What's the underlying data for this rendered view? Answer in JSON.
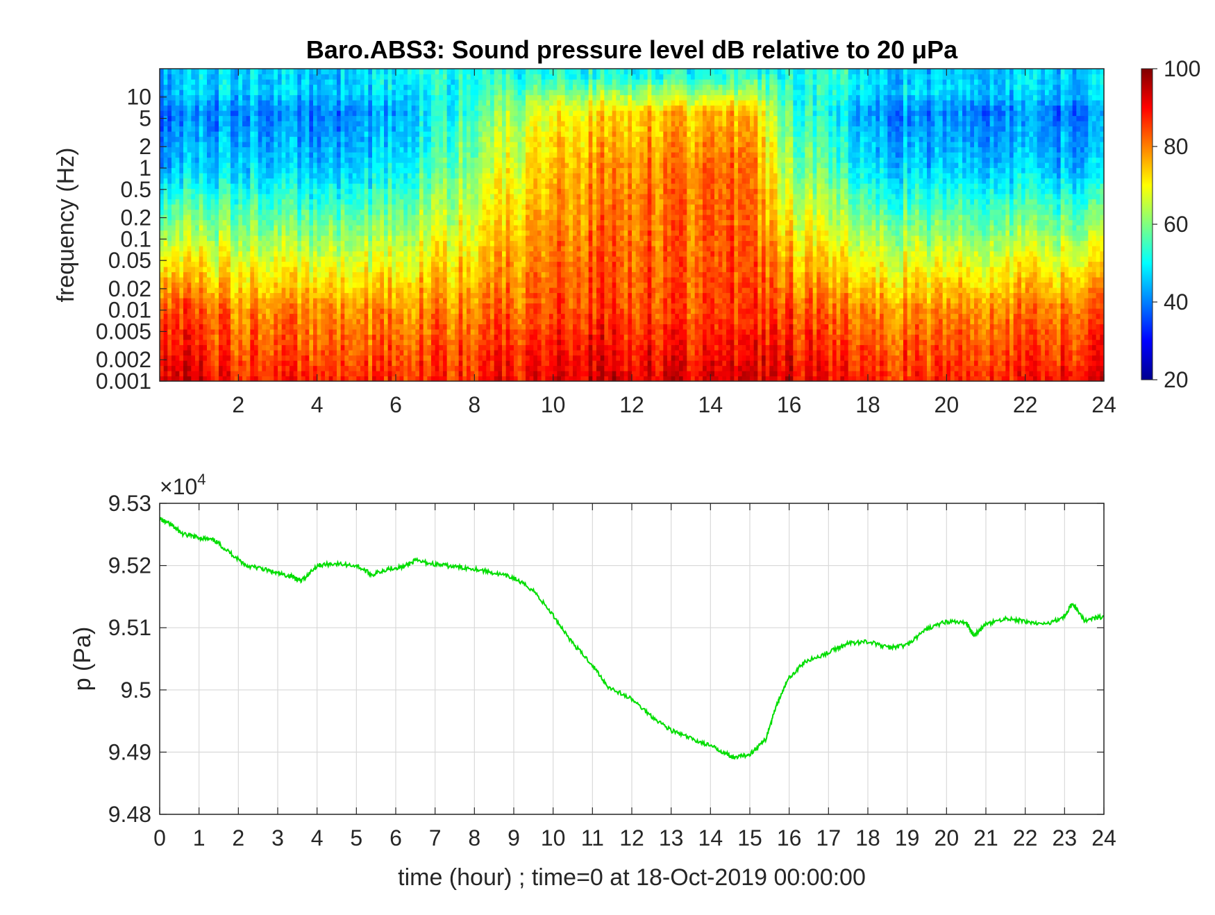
{
  "chart_data": [
    {
      "type": "heatmap",
      "title": "Baro.ABS3: Sound pressure level dB relative to 20 μPa",
      "xlabel": "",
      "ylabel": "frequency (Hz)",
      "x_range": [
        0,
        24
      ],
      "x_ticks": [
        "2",
        "4",
        "6",
        "8",
        "10",
        "12",
        "14",
        "16",
        "18",
        "20",
        "22",
        "24"
      ],
      "y_scale": "log",
      "y_range": [
        0.001,
        25
      ],
      "y_ticks": [
        "0.001",
        "0.002",
        "0.005",
        "0.01",
        "0.02",
        "0.05",
        "0.1",
        "0.2",
        "0.5",
        "1",
        "2",
        "5",
        "10"
      ],
      "colorbar": {
        "range": [
          20,
          100
        ],
        "ticks": [
          "20",
          "40",
          "60",
          "80",
          "100"
        ],
        "colormap": "jet"
      },
      "description_values": {
        "time_hour": [
          0,
          2,
          4,
          6,
          8,
          10,
          11,
          12,
          13,
          14,
          15,
          16,
          17,
          18,
          20,
          22,
          24
        ],
        "peak_level_db_at_low_freq": [
          95,
          88,
          86,
          88,
          88,
          92,
          94,
          93,
          92,
          93,
          92,
          93,
          88,
          88,
          87,
          88,
          90
        ],
        "level_db_at_1hz": [
          45,
          48,
          44,
          50,
          62,
          75,
          78,
          80,
          80,
          82,
          80,
          62,
          55,
          48,
          46,
          46,
          45
        ]
      }
    },
    {
      "type": "line",
      "title": "",
      "xlabel": "time (hour) ; time=0 at 18-Oct-2019 00:00:00",
      "ylabel": "p (Pa)",
      "exponent_label": "×10",
      "exponent_power": "4",
      "xlim": [
        0,
        24
      ],
      "ylim": [
        9.48,
        9.53
      ],
      "x_ticks": [
        "0",
        "1",
        "2",
        "3",
        "4",
        "5",
        "6",
        "7",
        "8",
        "9",
        "10",
        "11",
        "12",
        "13",
        "14",
        "15",
        "16",
        "17",
        "18",
        "19",
        "20",
        "21",
        "22",
        "23",
        "24"
      ],
      "y_ticks": [
        "9.48",
        "9.49",
        "9.5",
        "9.51",
        "9.52",
        "9.53"
      ],
      "grid": true,
      "series_color": "#00dd00",
      "x": [
        0,
        0.3,
        0.6,
        1.0,
        1.4,
        1.8,
        2.2,
        2.6,
        3.0,
        3.4,
        3.6,
        4.0,
        4.4,
        5.0,
        5.4,
        5.8,
        6.2,
        6.5,
        7.0,
        7.5,
        8.0,
        8.5,
        9.0,
        9.5,
        10.0,
        10.5,
        11.0,
        11.4,
        12.0,
        12.5,
        13.0,
        13.5,
        14.0,
        14.4,
        14.6,
        15.0,
        15.4,
        15.7,
        16.0,
        16.4,
        17.0,
        17.5,
        18.0,
        18.5,
        19.0,
        19.5,
        20.0,
        20.5,
        20.7,
        21.0,
        21.5,
        22.0,
        22.5,
        23.0,
        23.2,
        23.5,
        24.0
      ],
      "y": [
        9.5275,
        9.5265,
        9.525,
        9.5245,
        9.524,
        9.522,
        9.52,
        9.5195,
        9.5187,
        9.5182,
        9.5175,
        9.52,
        9.5203,
        9.52,
        9.5185,
        9.5195,
        9.5198,
        9.5208,
        9.5202,
        9.5198,
        9.5195,
        9.5188,
        9.518,
        9.516,
        9.512,
        9.5075,
        9.504,
        9.5005,
        9.4985,
        9.4958,
        9.4935,
        9.4922,
        9.491,
        9.4898,
        9.489,
        9.4897,
        9.492,
        9.498,
        9.502,
        9.5045,
        9.506,
        9.5075,
        9.5078,
        9.5068,
        9.5072,
        9.5098,
        9.511,
        9.5108,
        9.5088,
        9.5105,
        9.5115,
        9.511,
        9.5105,
        9.5118,
        9.514,
        9.5112,
        9.5118
      ]
    }
  ]
}
